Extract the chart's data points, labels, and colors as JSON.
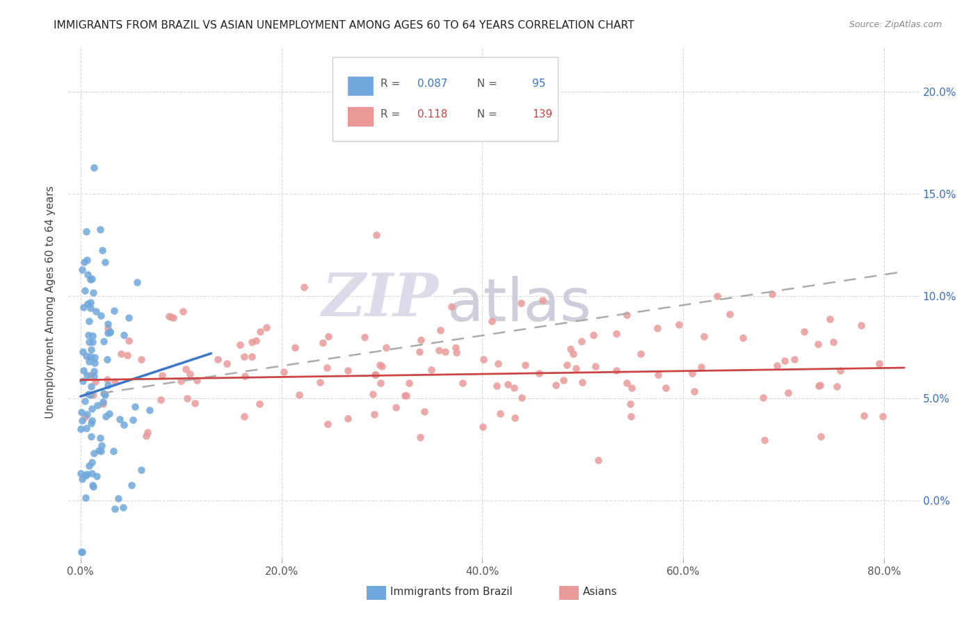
{
  "title": "IMMIGRANTS FROM BRAZIL VS ASIAN UNEMPLOYMENT AMONG AGES 60 TO 64 YEARS CORRELATION CHART",
  "source": "Source: ZipAtlas.com",
  "ylabel": "Unemployment Among Ages 60 to 64 years",
  "xlabel_ticks": [
    "0.0%",
    "20.0%",
    "40.0%",
    "60.0%",
    "80.0%"
  ],
  "xlabel_vals": [
    0.0,
    0.2,
    0.4,
    0.6,
    0.8
  ],
  "ylabel_ticks": [
    "0.0%",
    "5.0%",
    "10.0%",
    "15.0%",
    "20.0%"
  ],
  "ylabel_vals": [
    0.0,
    0.05,
    0.1,
    0.15,
    0.2
  ],
  "xlim": [
    -0.012,
    0.835
  ],
  "ylim": [
    -0.028,
    0.222
  ],
  "brazil_R": 0.087,
  "brazil_N": 95,
  "asian_R": 0.118,
  "asian_N": 139,
  "brazil_color": "#6fa8dc",
  "asian_color": "#ea9999",
  "brazil_line_color": "#3a78c9",
  "asian_line_color": "#cc4444",
  "dashed_line_color": "#aaaaaa",
  "background_color": "#ffffff",
  "watermark_zip_color": "#d8d8e8",
  "watermark_atlas_color": "#c8c8d8",
  "brazil_line_x0": 0.0,
  "brazil_line_y0": 0.051,
  "brazil_line_x1": 0.13,
  "brazil_line_y1": 0.072,
  "dashed_line_x0": 0.0,
  "dashed_line_y0": 0.051,
  "dashed_line_x1": 0.82,
  "dashed_line_y1": 0.112,
  "asian_line_x0": 0.0,
  "asian_line_y0": 0.059,
  "asian_line_x1": 0.82,
  "asian_line_y1": 0.065,
  "legend_brazil_text": "R =  0.087   N =   95",
  "legend_asian_text": "R =   0.118   N = 139",
  "bottom_legend_brazil": "Immigrants from Brazil",
  "bottom_legend_asian": "Asians"
}
